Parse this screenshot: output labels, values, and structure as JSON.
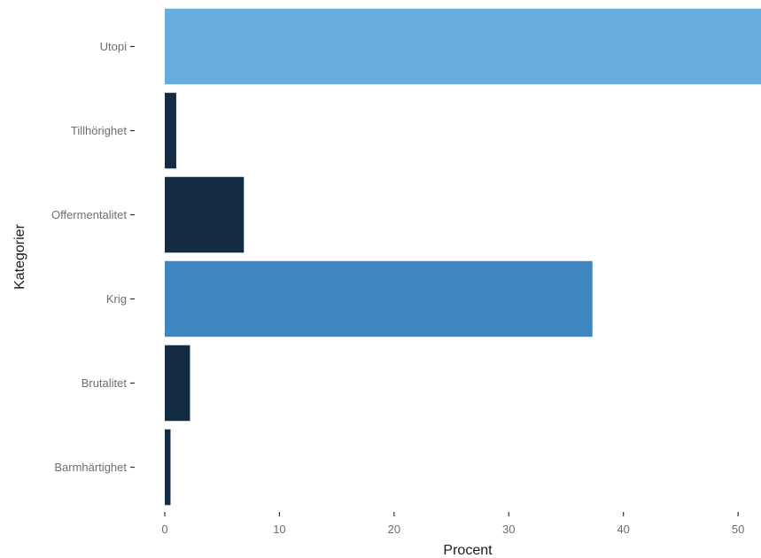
{
  "chart_data": {
    "type": "bar",
    "orientation": "horizontal",
    "categories": [
      "Barmhärtighet",
      "Brutalitet",
      "Krig",
      "Offermentalitet",
      "Tillhörighet",
      "Utopi"
    ],
    "values": [
      0.5,
      2.2,
      37.3,
      6.9,
      1.0,
      52.0
    ],
    "bar_colors": [
      "#132b43",
      "#132b43",
      "#3f86c1",
      "#132b43",
      "#132b43",
      "#66acde"
    ],
    "xlabel": "Procent",
    "ylabel": "Kategorier",
    "x_ticks": [
      0,
      10,
      20,
      30,
      40,
      50
    ],
    "x_tick_labels": [
      "0",
      "10",
      "20",
      "30",
      "40",
      "50"
    ],
    "xlim": [
      0,
      52
    ],
    "grid": false
  }
}
